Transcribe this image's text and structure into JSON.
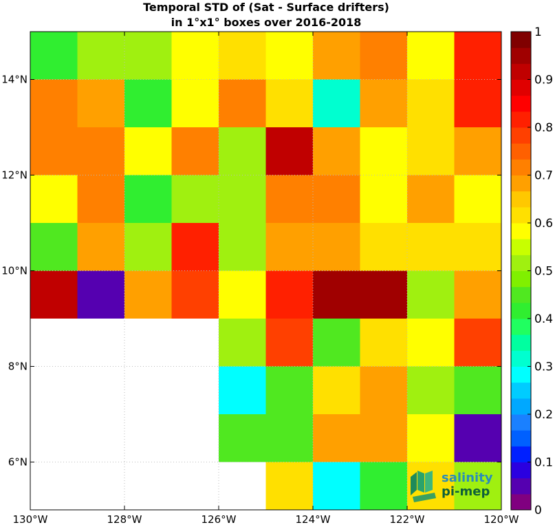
{
  "chart_data": {
    "type": "heatmap",
    "title_line1": "Temporal STD of (Sat - Surface drifters)",
    "title_line2": "in 1°x1° boxes over 2016-2018",
    "x_ticks": [
      {
        "value": -130,
        "label": "130°W"
      },
      {
        "value": -128,
        "label": "128°W"
      },
      {
        "value": -126,
        "label": "126°W"
      },
      {
        "value": -124,
        "label": "124°W"
      },
      {
        "value": -122,
        "label": "122°W"
      },
      {
        "value": -120,
        "label": "120°W"
      }
    ],
    "y_ticks": [
      {
        "value": 6,
        "label": "6°N"
      },
      {
        "value": 8,
        "label": "8°N"
      },
      {
        "value": 10,
        "label": "10°N"
      },
      {
        "value": 12,
        "label": "12°N"
      },
      {
        "value": 14,
        "label": "14°N"
      }
    ],
    "xlim": [
      -130,
      -120
    ],
    "ylim": [
      5,
      15
    ],
    "grid": true,
    "colorbar": {
      "range": [
        0,
        1
      ],
      "ticks": [
        "0",
        "0.1",
        "0.2",
        "0.3",
        "0.4",
        "0.5",
        "0.6",
        "0.7",
        "0.8",
        "0.9",
        "1"
      ],
      "colors": [
        "#800080",
        "#5500b0",
        "#2a00e0",
        "#0020ff",
        "#0060ff",
        "#1a80ff",
        "#00a8ff",
        "#00ccff",
        "#00ffff",
        "#00ffd0",
        "#00ffa0",
        "#20ff60",
        "#30ee30",
        "#50e820",
        "#80f000",
        "#a0f010",
        "#c8ff00",
        "#ffff00",
        "#ffe000",
        "#ffc800",
        "#ffa000",
        "#ff8000",
        "#ff6000",
        "#ff4000",
        "#ff2000",
        "#ff0000",
        "#e00000",
        "#c00000",
        "#a00000",
        "#800000"
      ]
    },
    "x_centers": [
      -129.5,
      -128.5,
      -127.5,
      -126.5,
      -125.5,
      -124.5,
      -123.5,
      -122.5,
      -121.5,
      -120.5
    ],
    "y_centers": [
      14.5,
      13.5,
      12.5,
      11.5,
      10.5,
      9.5,
      8.5,
      7.5,
      6.5,
      5.5
    ],
    "values": [
      [
        0.4,
        0.52,
        0.5,
        0.58,
        0.63,
        0.58,
        0.68,
        0.72,
        0.58,
        0.83
      ],
      [
        0.72,
        0.68,
        0.4,
        0.58,
        0.72,
        0.63,
        0.33,
        0.68,
        0.63,
        0.83
      ],
      [
        0.72,
        0.72,
        0.58,
        0.72,
        0.5,
        0.9,
        0.68,
        0.58,
        0.63,
        0.68
      ],
      [
        0.58,
        0.72,
        0.4,
        0.5,
        0.5,
        0.72,
        0.72,
        0.58,
        0.68,
        0.58
      ],
      [
        0.45,
        0.68,
        0.5,
        0.83,
        0.5,
        0.68,
        0.68,
        0.63,
        0.63,
        0.63
      ],
      [
        0.9,
        0.05,
        0.68,
        0.78,
        0.58,
        0.83,
        0.95,
        0.95,
        0.5,
        0.68
      ],
      [
        null,
        null,
        null,
        null,
        0.5,
        0.78,
        0.45,
        0.63,
        0.58,
        0.78
      ],
      [
        null,
        null,
        null,
        null,
        0.28,
        0.45,
        0.63,
        0.68,
        0.5,
        0.45
      ],
      [
        null,
        null,
        null,
        null,
        0.45,
        0.45,
        0.68,
        0.68,
        0.58,
        0.05
      ],
      [
        null,
        null,
        null,
        null,
        null,
        0.63,
        0.28,
        0.4,
        0.63,
        0.5
      ]
    ]
  },
  "logo": {
    "line1": "salinity",
    "line2": "pi-mep",
    "color_top": "#2a8cb8",
    "color_bottom": "#0f5f3a"
  }
}
